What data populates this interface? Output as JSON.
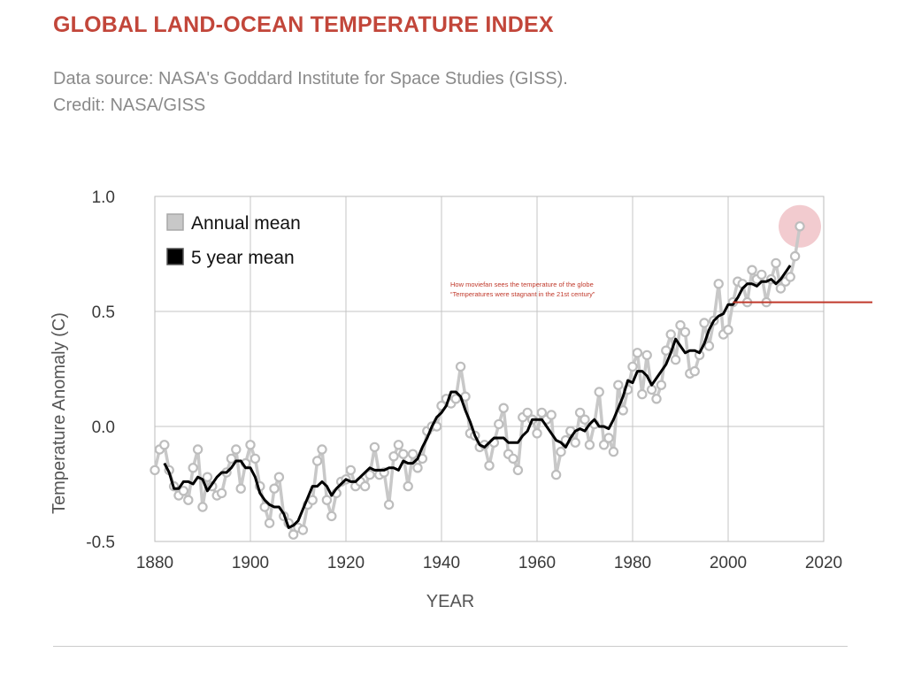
{
  "header": {
    "title": "GLOBAL LAND-OCEAN TEMPERATURE INDEX",
    "subtitle": "Data source: NASA's Goddard Institute for Space Studies (GISS). Credit: NASA/GISS"
  },
  "colors": {
    "title": "#c2463a",
    "annual_series": "#c8c8c8",
    "five_year_series": "#000000",
    "annotation": "#c0392b",
    "highlight": "#e8a0a8"
  },
  "chart_data": {
    "type": "line",
    "title": "",
    "xlabel": "YEAR",
    "ylabel": "Temperature Anomaly (C)",
    "xlim": [
      1880,
      2020
    ],
    "ylim": [
      -0.5,
      1.0
    ],
    "x_ticks": [
      1880,
      1900,
      1920,
      1940,
      1960,
      1980,
      2000,
      2020
    ],
    "x_tick_labels": [
      "1880",
      "1900",
      "1920",
      "1940",
      "1960",
      "1980",
      "2000",
      "2020"
    ],
    "y_ticks": [
      -0.5,
      0.0,
      0.5,
      1.0
    ],
    "y_tick_labels": [
      "-0.5",
      "0.0",
      "0.5",
      "1.0"
    ],
    "grid": true,
    "legend_placement": "top-left",
    "series": [
      {
        "name": "Annual mean",
        "style": "line-with-circle-markers",
        "x": [
          1880,
          1881,
          1882,
          1883,
          1884,
          1885,
          1886,
          1887,
          1888,
          1889,
          1890,
          1891,
          1892,
          1893,
          1894,
          1895,
          1896,
          1897,
          1898,
          1899,
          1900,
          1901,
          1902,
          1903,
          1904,
          1905,
          1906,
          1907,
          1908,
          1909,
          1910,
          1911,
          1912,
          1913,
          1914,
          1915,
          1916,
          1917,
          1918,
          1919,
          1920,
          1921,
          1922,
          1923,
          1924,
          1925,
          1926,
          1927,
          1928,
          1929,
          1930,
          1931,
          1932,
          1933,
          1934,
          1935,
          1936,
          1937,
          1938,
          1939,
          1940,
          1941,
          1942,
          1943,
          1944,
          1945,
          1946,
          1947,
          1948,
          1949,
          1950,
          1951,
          1952,
          1953,
          1954,
          1955,
          1956,
          1957,
          1958,
          1959,
          1960,
          1961,
          1962,
          1963,
          1964,
          1965,
          1966,
          1967,
          1968,
          1969,
          1970,
          1971,
          1972,
          1973,
          1974,
          1975,
          1976,
          1977,
          1978,
          1979,
          1980,
          1981,
          1982,
          1983,
          1984,
          1985,
          1986,
          1987,
          1988,
          1989,
          1990,
          1991,
          1992,
          1993,
          1994,
          1995,
          1996,
          1997,
          1998,
          1999,
          2000,
          2001,
          2002,
          2003,
          2004,
          2005,
          2006,
          2007,
          2008,
          2009,
          2010,
          2011,
          2012,
          2013,
          2014,
          2015
        ],
        "values": [
          -0.19,
          -0.1,
          -0.08,
          -0.19,
          -0.26,
          -0.3,
          -0.28,
          -0.32,
          -0.18,
          -0.1,
          -0.35,
          -0.22,
          -0.26,
          -0.3,
          -0.29,
          -0.2,
          -0.14,
          -0.1,
          -0.27,
          -0.16,
          -0.08,
          -0.14,
          -0.26,
          -0.35,
          -0.42,
          -0.27,
          -0.22,
          -0.39,
          -0.42,
          -0.47,
          -0.44,
          -0.45,
          -0.34,
          -0.32,
          -0.15,
          -0.1,
          -0.32,
          -0.39,
          -0.29,
          -0.24,
          -0.23,
          -0.19,
          -0.26,
          -0.24,
          -0.26,
          -0.21,
          -0.09,
          -0.21,
          -0.2,
          -0.34,
          -0.13,
          -0.08,
          -0.12,
          -0.26,
          -0.12,
          -0.18,
          -0.14,
          -0.02,
          0.0,
          0.0,
          0.09,
          0.12,
          0.1,
          0.12,
          0.26,
          0.13,
          -0.03,
          -0.04,
          -0.09,
          -0.08,
          -0.17,
          -0.07,
          0.01,
          0.08,
          -0.12,
          -0.14,
          -0.19,
          0.04,
          0.06,
          0.03,
          -0.03,
          0.06,
          0.03,
          0.05,
          -0.21,
          -0.11,
          -0.06,
          -0.02,
          -0.07,
          0.06,
          0.03,
          -0.08,
          0.01,
          0.15,
          -0.08,
          -0.05,
          -0.11,
          0.18,
          0.07,
          0.16,
          0.26,
          0.32,
          0.14,
          0.31,
          0.16,
          0.12,
          0.18,
          0.33,
          0.4,
          0.29,
          0.44,
          0.41,
          0.23,
          0.24,
          0.31,
          0.45,
          0.35,
          0.46,
          0.62,
          0.4,
          0.42,
          0.54,
          0.63,
          0.62,
          0.54,
          0.68,
          0.64,
          0.66,
          0.54,
          0.64,
          0.71,
          0.6,
          0.63,
          0.65,
          0.74,
          0.87
        ]
      },
      {
        "name": "5 year mean",
        "style": "line",
        "x": [
          1882,
          1883,
          1884,
          1885,
          1886,
          1887,
          1888,
          1889,
          1890,
          1891,
          1892,
          1893,
          1894,
          1895,
          1896,
          1897,
          1898,
          1899,
          1900,
          1901,
          1902,
          1903,
          1904,
          1905,
          1906,
          1907,
          1908,
          1909,
          1910,
          1911,
          1912,
          1913,
          1914,
          1915,
          1916,
          1917,
          1918,
          1919,
          1920,
          1921,
          1922,
          1923,
          1924,
          1925,
          1926,
          1927,
          1928,
          1929,
          1930,
          1931,
          1932,
          1933,
          1934,
          1935,
          1936,
          1937,
          1938,
          1939,
          1940,
          1941,
          1942,
          1943,
          1944,
          1945,
          1946,
          1947,
          1948,
          1949,
          1950,
          1951,
          1952,
          1953,
          1954,
          1955,
          1956,
          1957,
          1958,
          1959,
          1960,
          1961,
          1962,
          1963,
          1964,
          1965,
          1966,
          1967,
          1968,
          1969,
          1970,
          1971,
          1972,
          1973,
          1974,
          1975,
          1976,
          1977,
          1978,
          1979,
          1980,
          1981,
          1982,
          1983,
          1984,
          1985,
          1986,
          1987,
          1988,
          1989,
          1990,
          1991,
          1992,
          1993,
          1994,
          1995,
          1996,
          1997,
          1998,
          1999,
          2000,
          2001,
          2002,
          2003,
          2004,
          2005,
          2006,
          2007,
          2008,
          2009,
          2010,
          2011,
          2012,
          2013
        ],
        "values": [
          -0.16,
          -0.2,
          -0.27,
          -0.27,
          -0.24,
          -0.24,
          -0.25,
          -0.22,
          -0.23,
          -0.28,
          -0.25,
          -0.22,
          -0.2,
          -0.2,
          -0.18,
          -0.15,
          -0.15,
          -0.18,
          -0.18,
          -0.22,
          -0.29,
          -0.32,
          -0.34,
          -0.35,
          -0.35,
          -0.38,
          -0.44,
          -0.43,
          -0.41,
          -0.36,
          -0.31,
          -0.26,
          -0.26,
          -0.24,
          -0.26,
          -0.3,
          -0.27,
          -0.25,
          -0.23,
          -0.24,
          -0.24,
          -0.22,
          -0.2,
          -0.18,
          -0.19,
          -0.19,
          -0.19,
          -0.18,
          -0.18,
          -0.19,
          -0.15,
          -0.16,
          -0.16,
          -0.14,
          -0.09,
          -0.05,
          0.0,
          0.04,
          0.06,
          0.09,
          0.15,
          0.15,
          0.13,
          0.07,
          0.02,
          -0.04,
          -0.08,
          -0.09,
          -0.07,
          -0.05,
          -0.05,
          -0.05,
          -0.07,
          -0.07,
          -0.07,
          -0.04,
          -0.02,
          0.03,
          0.03,
          0.03,
          0.0,
          -0.03,
          -0.06,
          -0.07,
          -0.09,
          -0.05,
          -0.02,
          -0.01,
          -0.02,
          0.01,
          0.03,
          0.0,
          0.0,
          -0.01,
          0.03,
          0.08,
          0.13,
          0.2,
          0.19,
          0.24,
          0.24,
          0.22,
          0.18,
          0.21,
          0.24,
          0.27,
          0.32,
          0.38,
          0.35,
          0.32,
          0.33,
          0.33,
          0.32,
          0.36,
          0.42,
          0.46,
          0.48,
          0.49,
          0.53,
          0.53,
          0.56,
          0.6,
          0.62,
          0.62,
          0.61,
          0.63,
          0.63,
          0.64,
          0.62,
          0.64,
          0.67,
          0.7
        ]
      }
    ],
    "legend": {
      "entries": [
        {
          "label": "Annual mean",
          "color": "#c8c8c8"
        },
        {
          "label": "5 year mean",
          "color": "#000000"
        }
      ]
    },
    "annotations": {
      "line1": "How moviefan sees the temperature of the globe",
      "line2": "“Temperatures were stagnant in the 21st century”",
      "stagnant_line": {
        "x_start": 2001,
        "x_end": "beyond-axis",
        "value": 0.54
      },
      "highlight_point": {
        "x": 2015,
        "value": 0.87
      }
    }
  }
}
